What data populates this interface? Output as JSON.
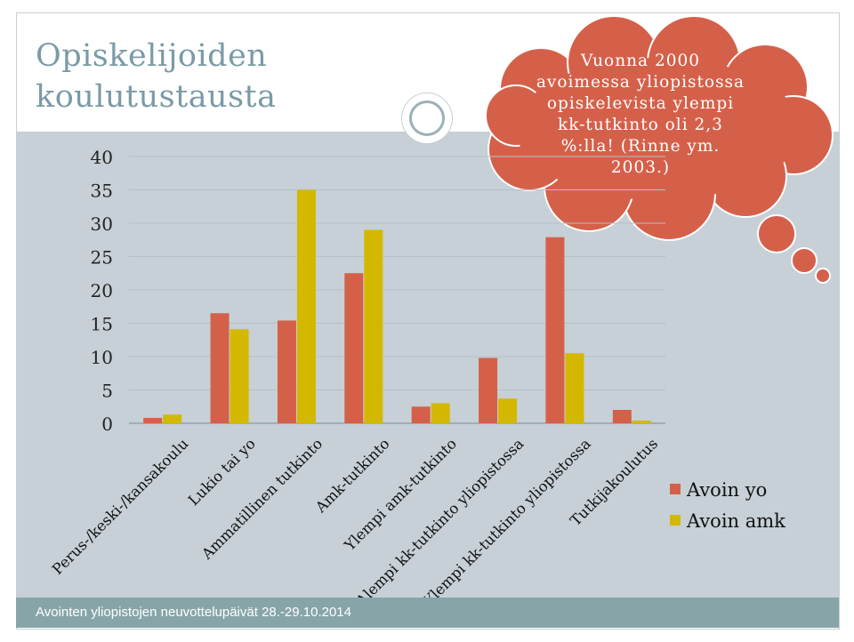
{
  "slide": {
    "title_line1": "Opiskelijoiden",
    "title_line2": "koulutustausta",
    "footer": "Avointen yliopistojen neuvottelupäivät 28.-29.10.2014"
  },
  "callout": {
    "lines": [
      "Vuonna 2000",
      "avoimessa yliopistossa",
      "opiskelevista ylempi",
      "kk-tutkinto oli 2,3",
      "%:lla! (Rinne ym.",
      "2003.)"
    ],
    "color": "#d5604a"
  },
  "chart_data": {
    "type": "bar",
    "title": "",
    "xlabel": "",
    "ylabel": "",
    "ylim": [
      0,
      40
    ],
    "yticks": [
      "0",
      "5",
      "10",
      "15",
      "20",
      "25",
      "30",
      "35",
      "40"
    ],
    "categories": [
      "Perus-/keski-/kansakoulu",
      "Lukio tai yo",
      "Ammatillinen tutkinto",
      "Amk-tutkinto",
      "Ylempi amk-tutkinto",
      "Alempi kk-tutkinto yliopistossa",
      "Ylempi kk-tutkinto yliopistossa",
      "Tutkijakoulutus"
    ],
    "series": [
      {
        "name": "Avoin yo",
        "color": "#d5604a",
        "values": [
          0.8,
          16.5,
          15.4,
          22.5,
          2.5,
          9.8,
          27.9,
          2.0
        ]
      },
      {
        "name": "Avoin amk",
        "color": "#d4b800",
        "values": [
          1.3,
          14.1,
          35.0,
          29.0,
          3.0,
          3.7,
          10.5,
          0.4
        ]
      }
    ],
    "legend_position": "bottom-right",
    "grid": true
  }
}
